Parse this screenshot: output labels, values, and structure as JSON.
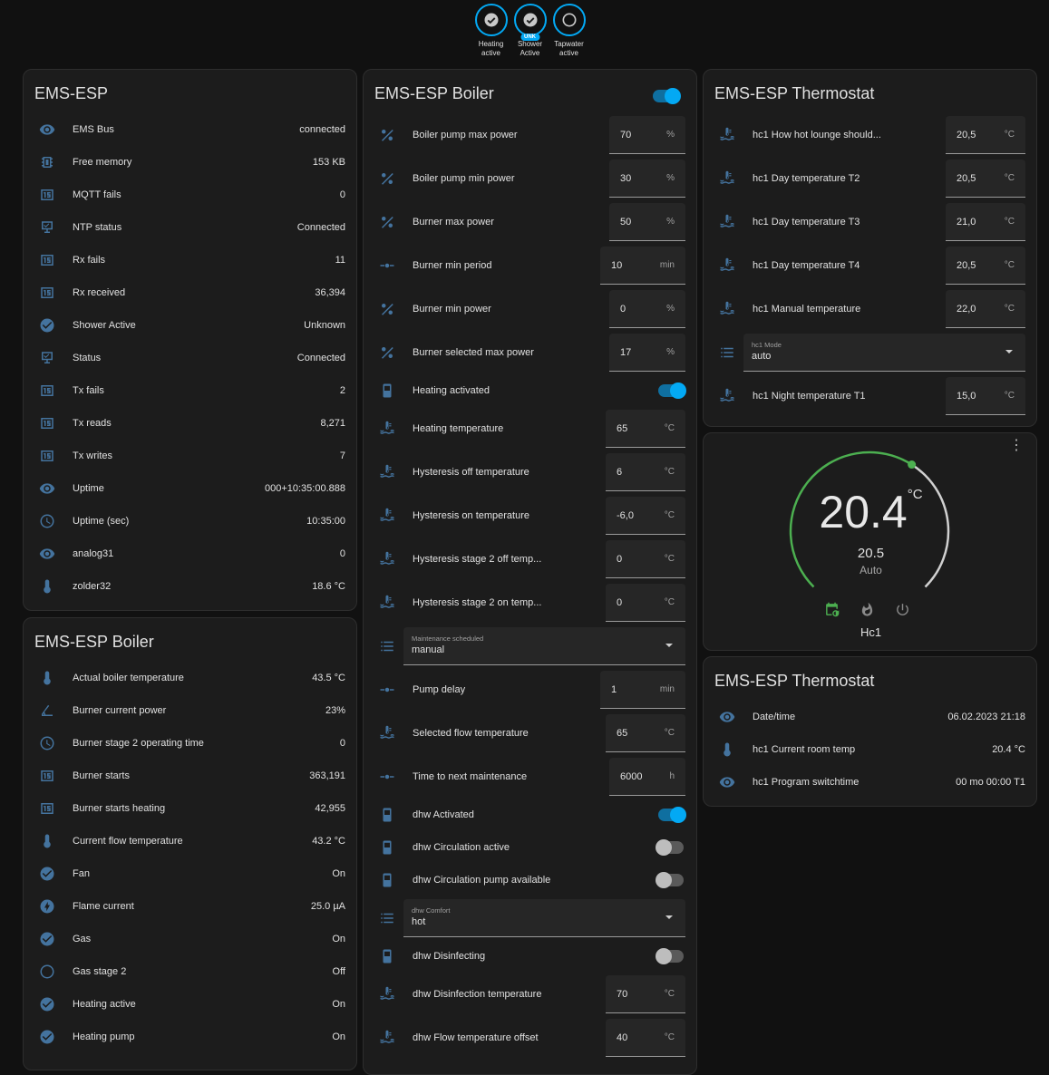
{
  "badges": [
    {
      "label": "Heating\nactive",
      "icon": "check-circle-icon",
      "state": "on"
    },
    {
      "label": "Shower\nActive",
      "icon": "check-circle-icon",
      "state": "on",
      "tag": "UNK"
    },
    {
      "label": "Tapwater\nactive",
      "icon": "circle-outline-icon",
      "state": "off"
    }
  ],
  "colors": {
    "icon": "#44739e",
    "accent": "#03a9f4",
    "heat": "#4caf50"
  },
  "ems_esp": {
    "title": "EMS-ESP",
    "rows": [
      {
        "icon": "eye",
        "label": "EMS Bus",
        "value": "connected"
      },
      {
        "icon": "chip",
        "label": "Free memory",
        "value": "153 KB"
      },
      {
        "icon": "counter",
        "label": "MQTT fails",
        "value": "0"
      },
      {
        "icon": "monitor",
        "label": "NTP status",
        "value": "Connected"
      },
      {
        "icon": "counter",
        "label": "Rx fails",
        "value": "11"
      },
      {
        "icon": "counter",
        "label": "Rx received",
        "value": "36,394"
      },
      {
        "icon": "check",
        "label": "Shower Active",
        "value": "Unknown"
      },
      {
        "icon": "monitor",
        "label": "Status",
        "value": "Connected"
      },
      {
        "icon": "counter",
        "label": "Tx fails",
        "value": "2"
      },
      {
        "icon": "counter",
        "label": "Tx reads",
        "value": "8,271"
      },
      {
        "icon": "counter",
        "label": "Tx writes",
        "value": "7"
      },
      {
        "icon": "eye",
        "label": "Uptime",
        "value": "000+10:35:00.888"
      },
      {
        "icon": "clock",
        "label": "Uptime (sec)",
        "value": "10:35:00"
      },
      {
        "icon": "eye",
        "label": "analog31",
        "value": "0"
      },
      {
        "icon": "thermometer",
        "label": "zolder32",
        "value": "18.6 °C"
      }
    ]
  },
  "boiler_sensors": {
    "title": "EMS-ESP Boiler",
    "rows": [
      {
        "icon": "thermometer",
        "label": "Actual boiler temperature",
        "value": "43.5 °C"
      },
      {
        "icon": "angle",
        "label": "Burner current power",
        "value": "23%"
      },
      {
        "icon": "clock",
        "label": "Burner stage 2 operating time",
        "value": "0"
      },
      {
        "icon": "counter",
        "label": "Burner starts",
        "value": "363,191"
      },
      {
        "icon": "counter",
        "label": "Burner starts heating",
        "value": "42,955"
      },
      {
        "icon": "thermometer",
        "label": "Current flow temperature",
        "value": "43.2 °C"
      },
      {
        "icon": "check",
        "label": "Fan",
        "value": "On"
      },
      {
        "icon": "flash",
        "label": "Flame current",
        "value": "25.0 µA"
      },
      {
        "icon": "check",
        "label": "Gas",
        "value": "On"
      },
      {
        "icon": "circle",
        "label": "Gas stage 2",
        "value": "Off"
      },
      {
        "icon": "check",
        "label": "Heating active",
        "value": "On"
      },
      {
        "icon": "check",
        "label": "Heating pump",
        "value": "On"
      }
    ]
  },
  "boiler_controls": {
    "title": "EMS-ESP Boiler",
    "header_toggle": true,
    "rows": [
      {
        "type": "input",
        "icon": "percent",
        "label": "Boiler pump max power",
        "value": "70",
        "unit": "%"
      },
      {
        "type": "input",
        "icon": "percent",
        "label": "Boiler pump min power",
        "value": "30",
        "unit": "%"
      },
      {
        "type": "input",
        "icon": "percent",
        "label": "Burner max power",
        "value": "50",
        "unit": "%"
      },
      {
        "type": "input",
        "icon": "slider",
        "label": "Burner min period",
        "value": "10",
        "unit": "min"
      },
      {
        "type": "input",
        "icon": "percent",
        "label": "Burner min power",
        "value": "0",
        "unit": "%"
      },
      {
        "type": "input",
        "icon": "percent",
        "label": "Burner selected max power",
        "value": "17",
        "unit": "%"
      },
      {
        "type": "toggle",
        "icon": "switch",
        "label": "Heating activated",
        "on": true
      },
      {
        "type": "input",
        "icon": "water-temp",
        "label": "Heating temperature",
        "value": "65",
        "unit": "°C"
      },
      {
        "type": "input",
        "icon": "water-temp",
        "label": "Hysteresis off temperature",
        "value": "6",
        "unit": "°C"
      },
      {
        "type": "input",
        "icon": "water-temp",
        "label": "Hysteresis on temperature",
        "value": "-6,0",
        "unit": "°C"
      },
      {
        "type": "input",
        "icon": "water-temp",
        "label": "Hysteresis stage 2 off temp...",
        "value": "0",
        "unit": "°C"
      },
      {
        "type": "input",
        "icon": "water-temp",
        "label": "Hysteresis stage 2 on temp...",
        "value": "0",
        "unit": "°C"
      },
      {
        "type": "select",
        "icon": "list",
        "label": "Maintenance scheduled",
        "value": "manual"
      },
      {
        "type": "input",
        "icon": "slider",
        "label": "Pump delay",
        "value": "1",
        "unit": "min"
      },
      {
        "type": "input",
        "icon": "water-temp",
        "label": "Selected flow temperature",
        "value": "65",
        "unit": "°C"
      },
      {
        "type": "input",
        "icon": "slider",
        "label": "Time to next maintenance",
        "value": "6000",
        "unit": "h"
      },
      {
        "type": "toggle",
        "icon": "switch",
        "label": "dhw Activated",
        "on": true
      },
      {
        "type": "toggle",
        "icon": "switch",
        "label": "dhw Circulation active",
        "on": false
      },
      {
        "type": "toggle",
        "icon": "switch",
        "label": "dhw Circulation pump available",
        "on": false
      },
      {
        "type": "select",
        "icon": "list",
        "label": "dhw Comfort",
        "value": "hot"
      },
      {
        "type": "toggle",
        "icon": "switch",
        "label": "dhw Disinfecting",
        "on": false
      },
      {
        "type": "input",
        "icon": "water-temp",
        "label": "dhw Disinfection temperature",
        "value": "70",
        "unit": "°C"
      },
      {
        "type": "input",
        "icon": "water-temp",
        "label": "dhw Flow temperature offset",
        "value": "40",
        "unit": "°C"
      }
    ]
  },
  "thermostat_controls": {
    "title": "EMS-ESP Thermostat",
    "rows": [
      {
        "type": "input",
        "icon": "water-temp",
        "label": "hc1 How hot lounge should...",
        "value": "20,5",
        "unit": "°C"
      },
      {
        "type": "input",
        "icon": "water-temp",
        "label": "hc1 Day temperature T2",
        "value": "20,5",
        "unit": "°C"
      },
      {
        "type": "input",
        "icon": "water-temp",
        "label": "hc1 Day temperature T3",
        "value": "21,0",
        "unit": "°C"
      },
      {
        "type": "input",
        "icon": "water-temp",
        "label": "hc1 Day temperature T4",
        "value": "20,5",
        "unit": "°C"
      },
      {
        "type": "input",
        "icon": "water-temp",
        "label": "hc1 Manual temperature",
        "value": "22,0",
        "unit": "°C"
      },
      {
        "type": "select",
        "icon": "list",
        "label": "hc1 Mode",
        "value": "auto"
      },
      {
        "type": "input",
        "icon": "water-temp",
        "label": "hc1 Night temperature T1",
        "value": "15,0",
        "unit": "°C"
      }
    ]
  },
  "thermostat_dial": {
    "current": "20.4",
    "unit": "°C",
    "target": "20.5",
    "target_value": 20.5,
    "min": 5,
    "max": 30,
    "mode": "Auto",
    "name": "Hc1",
    "modes": [
      "auto-schedule-icon",
      "heat-icon",
      "off-icon"
    ],
    "active_mode": 0
  },
  "thermostat_sensors": {
    "title": "EMS-ESP Thermostat",
    "rows": [
      {
        "icon": "eye",
        "label": "Date/time",
        "value": "06.02.2023 21:18"
      },
      {
        "icon": "thermometer",
        "label": "hc1 Current room temp",
        "value": "20.4 °C"
      },
      {
        "icon": "eye",
        "label": "hc1 Program switchtime",
        "value": "00 mo 00:00 T1"
      }
    ]
  }
}
